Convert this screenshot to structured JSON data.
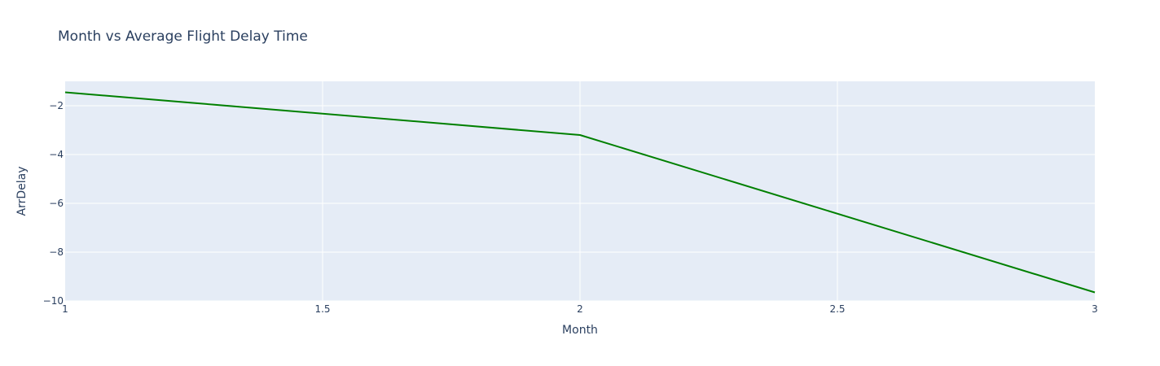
{
  "chart_data": {
    "type": "line",
    "title": "Month vs Average Flight Delay Time",
    "xlabel": "Month",
    "ylabel": "ArrDelay",
    "xlim": [
      1,
      3
    ],
    "ylim": [
      -10,
      -1
    ],
    "x_ticks": [
      1,
      1.5,
      2,
      2.5,
      3
    ],
    "x_tick_labels": [
      "1",
      "1.5",
      "2",
      "2.5",
      "3"
    ],
    "y_ticks": [
      -2,
      -4,
      -6,
      -8,
      -10
    ],
    "y_tick_labels": [
      "−2",
      "−4",
      "−6",
      "−8",
      "−10"
    ],
    "grid": true,
    "legend": "none",
    "colors": {
      "plot_background": "#e5ecf6",
      "line": "#008000",
      "text": "#2a3f5f"
    },
    "series": [
      {
        "x": [
          1,
          2,
          3
        ],
        "values": [
          -1.45,
          -3.2,
          -9.65
        ]
      }
    ]
  }
}
